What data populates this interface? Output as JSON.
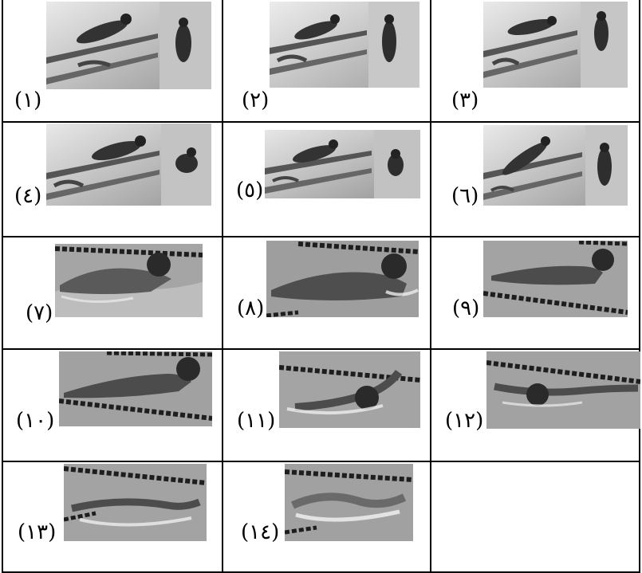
{
  "figure_labels": [
    "(١)",
    "(٢)",
    "(٣)",
    "(٤)",
    "(٥)",
    "(٦)",
    "(٧)",
    "(٨)",
    "(٩)",
    "(١٠)",
    "(١١)",
    "(١٢)",
    "(١٣)",
    "(١٤)"
  ],
  "colors": {
    "line": "#000000",
    "background": "#ffffff"
  }
}
